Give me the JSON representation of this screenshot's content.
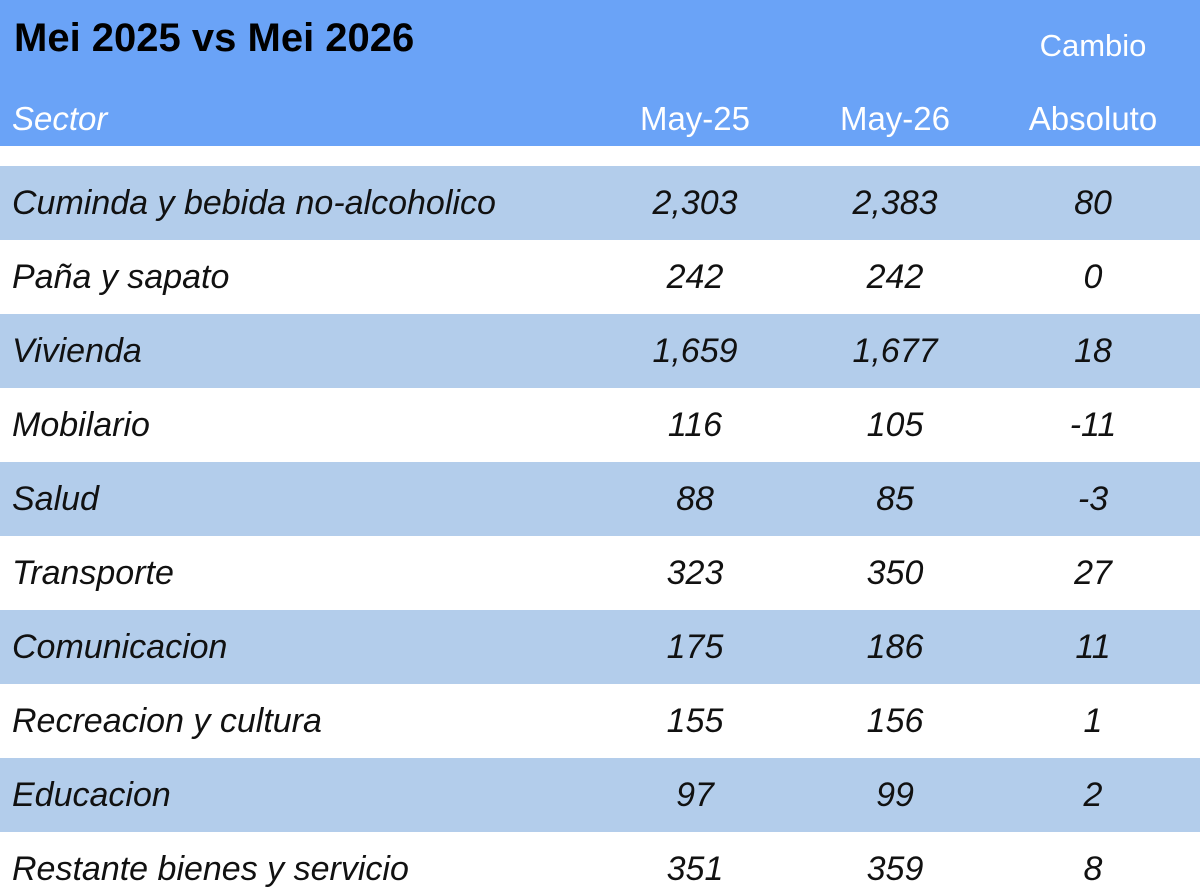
{
  "title": "Mei 2025 vs Mei 2026",
  "header": {
    "cambio": "Cambio",
    "sector": "Sector",
    "col1": "May-25",
    "col2": "May-26",
    "col3": "Absoluto"
  },
  "rows": [
    {
      "sector": "Cuminda y bebida no-alcoholico",
      "may25": "2,303",
      "may26": "2,383",
      "change": "80"
    },
    {
      "sector": "Paña y sapato",
      "may25": "242",
      "may26": "242",
      "change": "0"
    },
    {
      "sector": "Vivienda",
      "may25": "1,659",
      "may26": "1,677",
      "change": "18"
    },
    {
      "sector": "Mobilario",
      "may25": "116",
      "may26": "105",
      "change": "-11"
    },
    {
      "sector": "Salud",
      "may25": "88",
      "may26": "85",
      "change": "-3"
    },
    {
      "sector": "Transporte",
      "may25": "323",
      "may26": "350",
      "change": "27"
    },
    {
      "sector": "Comunicacion",
      "may25": "175",
      "may26": "186",
      "change": "11"
    },
    {
      "sector": "Recreacion y cultura",
      "may25": "155",
      "may26": "156",
      "change": "1"
    },
    {
      "sector": "Educacion",
      "may25": "97",
      "may26": "99",
      "change": "2"
    },
    {
      "sector": "Restante bienes y servicio",
      "may25": "351",
      "may26": "359",
      "change": "8"
    }
  ],
  "colors": {
    "header_bg": "#6aa3f7",
    "row_shade": "#b3cdeb",
    "row_plain": "#ffffff"
  }
}
